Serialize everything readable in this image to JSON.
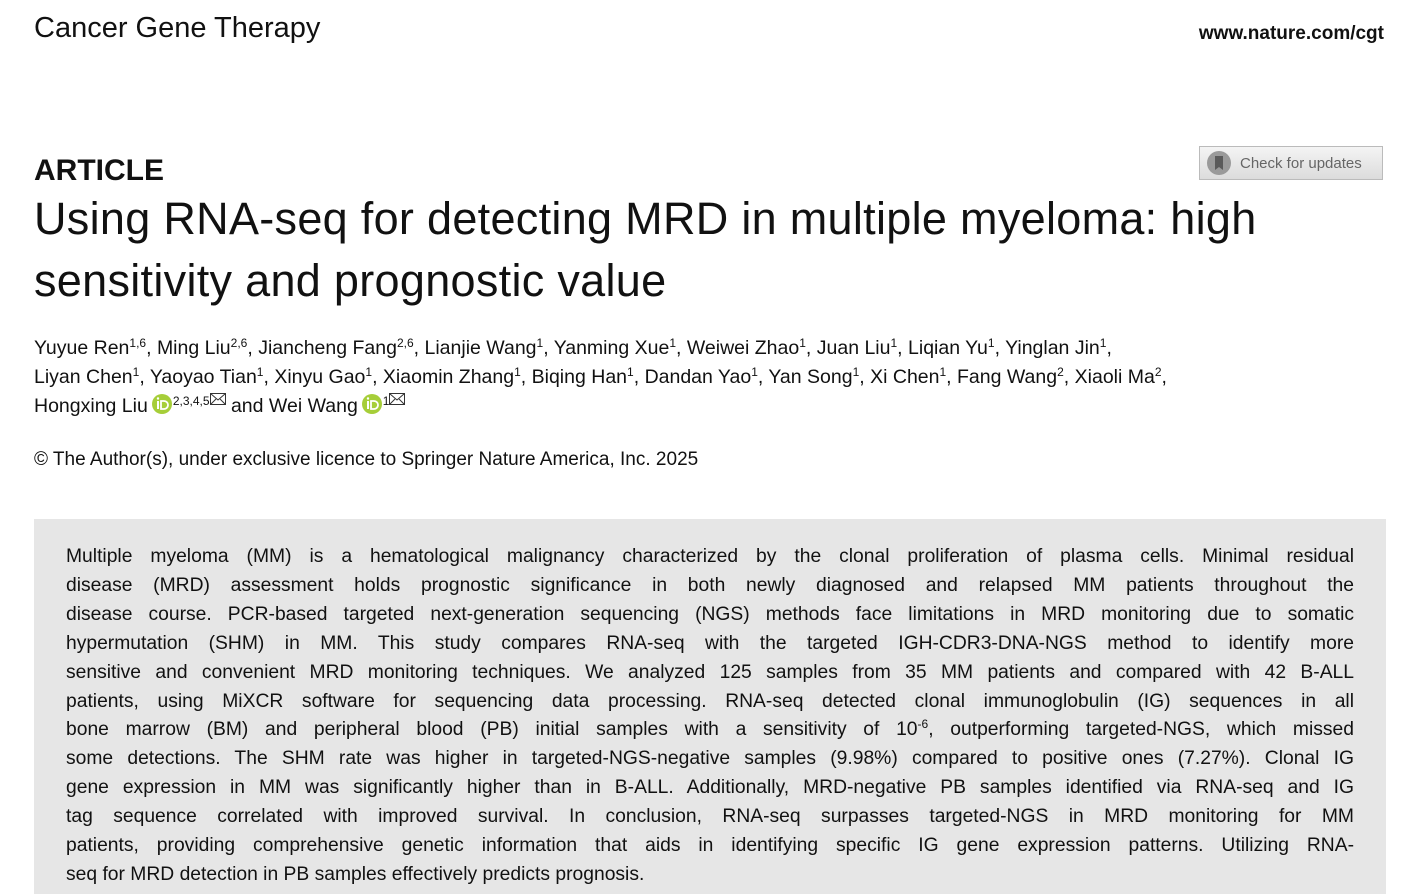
{
  "header": {
    "journal": "Cancer Gene Therapy",
    "url": "www.nature.com/cgt"
  },
  "article_type": "ARTICLE",
  "update_button": "Check for updates",
  "title_lines": [
    "Using RNA-seq for detecting MRD in multiple myeloma: high",
    "sensitivity and prognostic value"
  ],
  "authors": {
    "lines": [
      [
        {
          "name": "Yuyue Ren",
          "aff": "1,6",
          "sep": ", "
        },
        {
          "name": "Ming Liu",
          "aff": "2,6",
          "sep": ", "
        },
        {
          "name": "Jiancheng Fang",
          "aff": "2,6",
          "sep": ", "
        },
        {
          "name": "Lianjie Wang",
          "aff": "1",
          "sep": ", "
        },
        {
          "name": "Yanming Xue",
          "aff": "1",
          "sep": ", "
        },
        {
          "name": "Weiwei Zhao",
          "aff": "1",
          "sep": ", "
        },
        {
          "name": "Juan Liu",
          "aff": "1",
          "sep": ", "
        },
        {
          "name": "Liqian Yu",
          "aff": "1",
          "sep": ", "
        },
        {
          "name": "Yinglan Jin",
          "aff": "1",
          "sep": ","
        }
      ],
      [
        {
          "name": "Liyan Chen",
          "aff": "1",
          "sep": ", "
        },
        {
          "name": "Yaoyao Tian",
          "aff": "1",
          "sep": ", "
        },
        {
          "name": "Xinyu Gao",
          "aff": "1",
          "sep": ", "
        },
        {
          "name": "Xiaomin Zhang",
          "aff": "1",
          "sep": ", "
        },
        {
          "name": "Biqing Han",
          "aff": "1",
          "sep": ", "
        },
        {
          "name": "Dandan Yao",
          "aff": "1",
          "sep": ", "
        },
        {
          "name": "Yan Song",
          "aff": "1",
          "sep": ", "
        },
        {
          "name": "Xi Chen",
          "aff": "1",
          "sep": ", "
        },
        {
          "name": "Fang Wang",
          "aff": "2",
          "sep": ", "
        },
        {
          "name": "Xiaoli Ma",
          "aff": "2",
          "sep": ","
        }
      ],
      [
        {
          "name": "Hongxing Liu",
          "aff": "2,3,4,5",
          "sep": " and ",
          "orcid": true,
          "email": true
        },
        {
          "name": "Wei Wang",
          "aff": "1",
          "sep": "",
          "orcid": true,
          "email": true
        }
      ]
    ]
  },
  "copyright": "© The Author(s), under exclusive licence to Springer Nature America, Inc. 2025",
  "abstract": {
    "lines": [
      "Multiple myeloma (MM) is a hematological malignancy characterized by the clonal proliferation of plasma cells. Minimal residual",
      "disease (MRD) assessment holds prognostic significance in both newly diagnosed and relapsed MM patients throughout the",
      "disease course. PCR-based targeted next-generation sequencing (NGS) methods face limitations in MRD monitoring due to somatic",
      "hypermutation (SHM) in MM. This study compares RNA-seq with the targeted IGH-CDR3-DNA-NGS method to identify more",
      "sensitive and convenient MRD monitoring techniques. We analyzed 125 samples from 35 MM patients and compared with 42 B-ALL",
      "patients, using MiXCR software for sequencing data processing. RNA-seq detected clonal immunoglobulin (IG) sequences in all",
      [
        "bone marrow (BM) and peripheral blood (PB) initial samples with a sensitivity of 10",
        "-6",
        ", outperforming targeted-NGS, which missed"
      ],
      "some detections. The SHM rate was higher in targeted-NGS-negative samples (9.98%) compared to positive ones (7.27%). Clonal IG",
      "gene expression in MM was significantly higher than in B-ALL. Additionally, MRD-negative PB samples identified via RNA-seq and IG",
      "tag sequence correlated with improved survival. In conclusion, RNA-seq surpasses targeted-NGS in MRD monitoring for MM",
      "patients, providing comprehensive genetic information that aids in identifying specific IG gene expression patterns. Utilizing RNA-",
      "seq for MRD detection in PB samples effectively predicts prognosis."
    ]
  }
}
